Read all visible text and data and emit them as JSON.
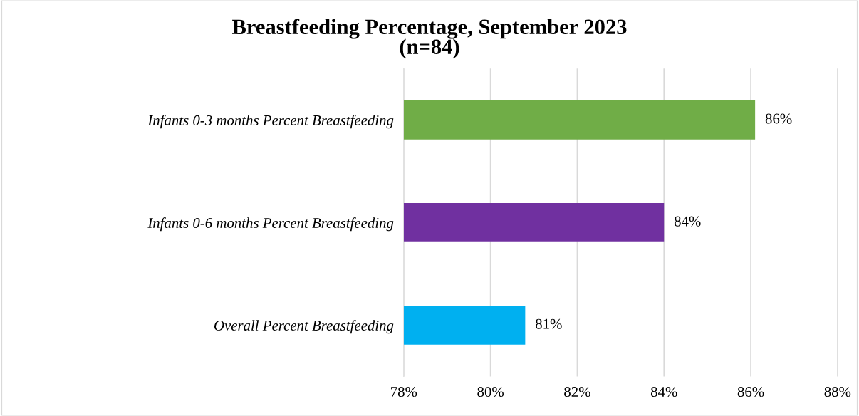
{
  "chart_data": {
    "type": "bar",
    "orientation": "horizontal",
    "title": "Breastfeeding Percentage, September 2023\n(n=84)",
    "categories": [
      "Infants 0-3 months Percent Breastfeeding",
      "Infants 0-6 months Percent Breastfeeding",
      "Overall Percent Breastfeeding"
    ],
    "values": [
      86.1,
      84.0,
      80.8
    ],
    "colors": [
      "#70ad47",
      "#7030a0",
      "#00b0f0"
    ],
    "value_labels": [
      "86%",
      "84%",
      "81%"
    ],
    "xlim": [
      78,
      88
    ],
    "xticks": [
      {
        "value": 78,
        "label": "78%"
      },
      {
        "value": 80,
        "label": "80%"
      },
      {
        "value": 82,
        "label": "82%"
      },
      {
        "value": 84,
        "label": "84%"
      },
      {
        "value": 86,
        "label": "86%"
      },
      {
        "value": 88,
        "label": "88%"
      }
    ],
    "grid": "x",
    "legend": false
  }
}
